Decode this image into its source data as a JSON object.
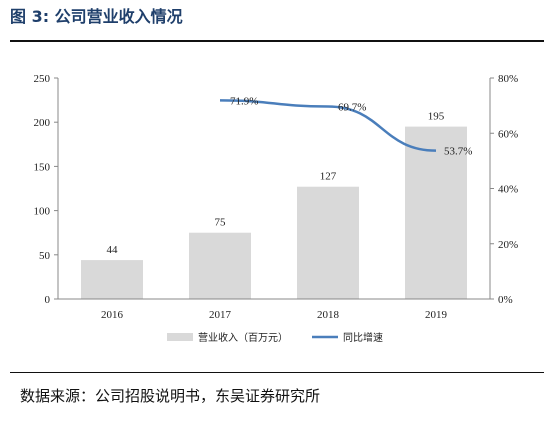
{
  "header": {
    "title": "图 3:  公司营业收入情况"
  },
  "footer": {
    "source": "数据来源：公司招股说明书，东吴证券研究所"
  },
  "chart_data": {
    "type": "bar",
    "categories": [
      "2016",
      "2017",
      "2018",
      "2019"
    ],
    "series": [
      {
        "name": "营业收入（百万元）",
        "type": "bar",
        "axis": "left",
        "values": [
          44,
          75,
          127,
          195
        ],
        "color": "#d9d9d9"
      },
      {
        "name": "同比增速",
        "type": "line",
        "axis": "right",
        "values": [
          null,
          71.9,
          69.7,
          53.7
        ],
        "labels": [
          "",
          "71.9%",
          "69.7%",
          "53.7%"
        ],
        "color": "#4a7ebb"
      }
    ],
    "left_axis": {
      "ylim": [
        0,
        250
      ],
      "ticks": [
        "0",
        "50",
        "100",
        "150",
        "200",
        "250"
      ]
    },
    "right_axis": {
      "ylim": [
        0,
        80
      ],
      "ticks": [
        "0%",
        "20%",
        "40%",
        "60%",
        "80%"
      ]
    },
    "grid": false,
    "legend_position": "bottom"
  }
}
